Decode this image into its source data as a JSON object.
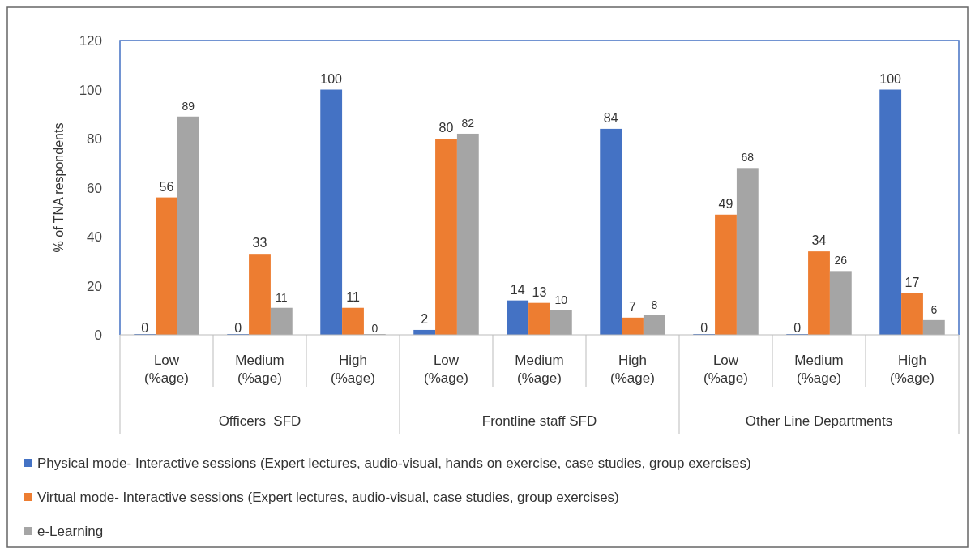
{
  "chart_data": {
    "type": "bar",
    "ylabel": "% of TNA respondents",
    "categories": [
      "Low (%age)",
      "Medium (%age)",
      "High (%age)",
      "Low (%age)",
      "Medium (%age)",
      "High (%age)",
      "Low (%age)",
      "Medium (%age)",
      "High (%age)"
    ],
    "annotations": [
      "Officers  SFD",
      "Frontline staff SFD",
      "Other Line Departments"
    ],
    "series": [
      {
        "name": "Physical mode- Interactive sessions (Expert lectures, audio-visual, hands on exercise, case studies, group exercises)",
        "color": "#4472c4",
        "values": [
          0,
          0,
          100,
          2,
          14,
          84,
          0,
          0,
          100
        ]
      },
      {
        "name": "Virtual mode- Interactive sessions (Expert lectures, audio-visual, case studies, group exercises)",
        "color": "#ed7d31",
        "values": [
          56,
          33,
          11,
          80,
          13,
          7,
          49,
          34,
          17
        ]
      },
      {
        "name": "e-Learning",
        "color": "#a5a5a5",
        "values": [
          89,
          11,
          0,
          82,
          10,
          8,
          68,
          26,
          6
        ]
      }
    ],
    "ylim": [
      0,
      120
    ],
    "yticks": [
      0,
      20,
      40,
      60,
      80,
      100,
      120
    ],
    "data_labels": true,
    "legend": "bottom"
  }
}
